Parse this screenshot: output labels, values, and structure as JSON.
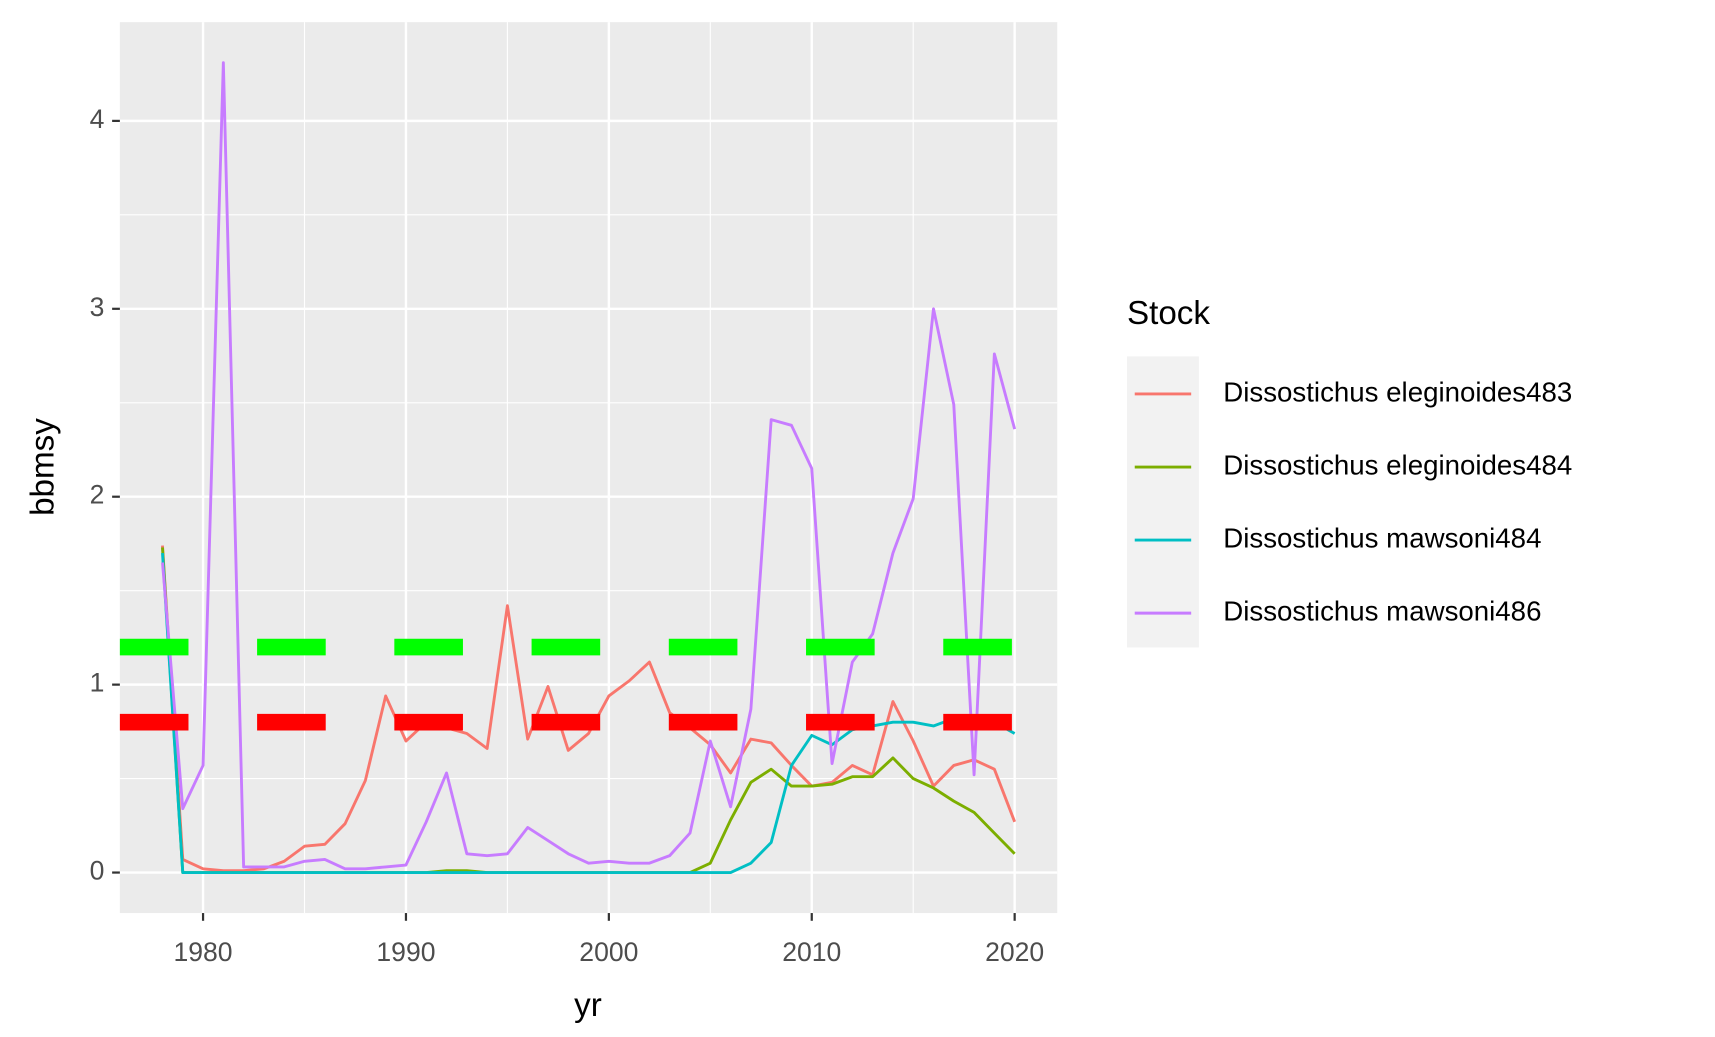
{
  "chart_data": {
    "type": "line",
    "x_label": "yr",
    "y_label": "bbmsy",
    "legend_title": "Stock",
    "legend_position": "right",
    "x": [
      1978,
      1979,
      1980,
      1981,
      1982,
      1983,
      1984,
      1985,
      1986,
      1987,
      1988,
      1989,
      1990,
      1991,
      1992,
      1993,
      1994,
      1995,
      1996,
      1997,
      1998,
      1999,
      2000,
      2001,
      2002,
      2003,
      2004,
      2005,
      2006,
      2007,
      2008,
      2009,
      2010,
      2011,
      2012,
      2013,
      2014,
      2015,
      2016,
      2017,
      2018,
      2019,
      2020
    ],
    "series": [
      {
        "name": "Dissostichus eleginoides483",
        "color": "#f8766d",
        "values": [
          1.74,
          0.07,
          0.02,
          0.01,
          0.01,
          0.02,
          0.06,
          0.14,
          0.15,
          0.26,
          0.49,
          0.94,
          0.7,
          0.8,
          0.77,
          0.74,
          0.66,
          1.42,
          0.71,
          0.99,
          0.65,
          0.74,
          0.94,
          1.02,
          1.12,
          0.85,
          0.77,
          0.68,
          0.53,
          0.71,
          0.69,
          0.57,
          0.46,
          0.48,
          0.57,
          0.52,
          0.91,
          0.7,
          0.46,
          0.57,
          0.6,
          0.55,
          0.27
        ]
      },
      {
        "name": "Dissostichus eleginoides484",
        "color": "#7cae00",
        "values": [
          1.73,
          0,
          0,
          0,
          0,
          0,
          0,
          0,
          0,
          0,
          0,
          0,
          0,
          0,
          0.01,
          0.01,
          0,
          0,
          0,
          0,
          0,
          0,
          0,
          0,
          0,
          0,
          0,
          0.05,
          0.28,
          0.48,
          0.55,
          0.46,
          0.46,
          0.47,
          0.51,
          0.51,
          0.61,
          0.5,
          0.45,
          0.38,
          0.32,
          0.21,
          0.1
        ]
      },
      {
        "name": "Dissostichus mawsoni484",
        "color": "#00bfc4",
        "values": [
          1.7,
          0,
          0,
          0,
          0,
          0,
          0,
          0,
          0,
          0,
          0,
          0,
          0,
          0,
          0,
          0,
          0,
          0,
          0,
          0,
          0,
          0,
          0,
          0,
          0,
          0,
          0,
          0,
          0,
          0.05,
          0.16,
          0.57,
          0.73,
          0.68,
          0.76,
          0.78,
          0.8,
          0.8,
          0.78,
          0.82,
          0.8,
          0.8,
          0.74
        ]
      },
      {
        "name": "Dissostichus mawsoni486",
        "color": "#c77cff",
        "values": [
          1.65,
          0.34,
          0.57,
          4.31,
          0.03,
          0.03,
          0.03,
          0.06,
          0.07,
          0.02,
          0.02,
          0.03,
          0.04,
          0.27,
          0.53,
          0.1,
          0.09,
          0.1,
          0.24,
          0.17,
          0.1,
          0.05,
          0.06,
          0.05,
          0.05,
          0.09,
          0.21,
          0.7,
          0.35,
          0.87,
          2.41,
          2.38,
          2.15,
          0.58,
          1.12,
          1.27,
          1.7,
          1.99,
          3.0,
          2.49,
          0.52,
          2.76,
          2.36
        ]
      }
    ],
    "hlines": [
      {
        "value": 1.2,
        "color": "#00ff00"
      },
      {
        "value": 0.8,
        "color": "#ff0000"
      }
    ],
    "xlim": [
      1975.9,
      2022.1
    ],
    "ylim": [
      -0.2155,
      4.5255
    ],
    "xticks": [
      1980,
      1990,
      2000,
      2010,
      2020
    ],
    "yticks": [
      0,
      1,
      2,
      3,
      4
    ],
    "x_minor_ticks": [
      1985,
      1995,
      2005,
      2015
    ],
    "y_minor_ticks": [
      0.5,
      1.5,
      2.5,
      3.5
    ],
    "grid": true
  }
}
